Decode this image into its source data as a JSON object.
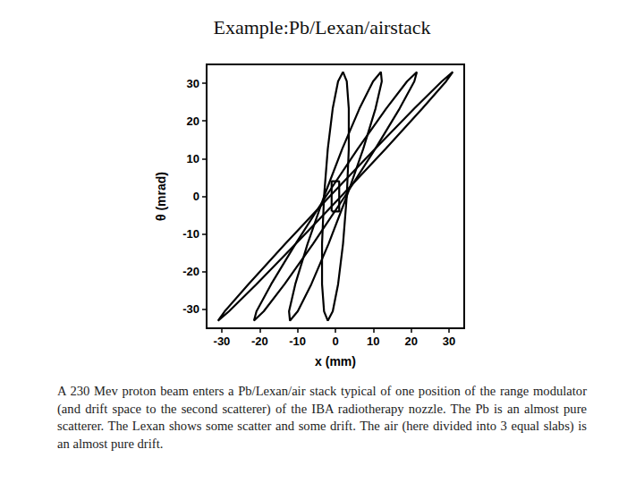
{
  "chart_data": {
    "type": "line",
    "title": "Example:Pb/Lexan/airstack",
    "x_label": "x (mm)",
    "y_label": "θ (mrad)",
    "caption": "A 230 Mev proton beam enters a Pb/Lexan/air stack typical of one position of the range modulator (and drift space to the second scatterer) of the IBA radiotherapy nozzle. The Pb is an almost pure scatterer. The Lexan shows some scatter and some drift. The air (here divided into 3 equal slabs) is an almost pure drift.",
    "xlim": [
      -34,
      34
    ],
    "xticks": [
      -30,
      -20,
      -10,
      0,
      10,
      20,
      30
    ],
    "ylim": [
      -35,
      35
    ],
    "yticks": [
      -30,
      -20,
      -10,
      0,
      10,
      20,
      30
    ],
    "grid": false,
    "color": "#000000",
    "marker": "none",
    "line_style": "solid",
    "series": [
      {
        "values": [
          [
            -1,
            -4
          ],
          [
            1,
            -4
          ],
          [
            1,
            4
          ],
          [
            -1,
            4
          ],
          [
            -1,
            -4
          ]
        ]
      },
      {
        "values": [
          [
            3,
            0
          ],
          [
            3.53,
            12.6
          ],
          [
            3.53,
            23.3
          ],
          [
            3.0,
            30.5
          ],
          [
            2,
            33
          ],
          [
            0.7,
            30.5
          ],
          [
            -0.71,
            23.3
          ],
          [
            -2.01,
            12.6
          ],
          [
            -3,
            0
          ],
          [
            -3.53,
            -12.6
          ],
          [
            -3.53,
            -23.3
          ],
          [
            -3.0,
            -30.5
          ],
          [
            -2,
            -33
          ],
          [
            -0.7,
            -30.5
          ],
          [
            0.71,
            -23.3
          ],
          [
            2.01,
            -12.6
          ],
          [
            3,
            0
          ]
        ]
      },
      {
        "values": [
          [
            3,
            0
          ],
          [
            7.35,
            12.6
          ],
          [
            10.59,
            23.3
          ],
          [
            12.24,
            30.5
          ],
          [
            12,
            33
          ],
          [
            9.94,
            30.5
          ],
          [
            6.35,
            23.3
          ],
          [
            1.81,
            12.6
          ],
          [
            -3,
            0
          ],
          [
            -7.35,
            -12.6
          ],
          [
            -10.59,
            -23.3
          ],
          [
            -12.24,
            -30.5
          ],
          [
            -12,
            -33
          ],
          [
            -9.94,
            -30.5
          ],
          [
            -6.35,
            -23.3
          ],
          [
            -1.81,
            -12.6
          ],
          [
            3,
            0
          ]
        ]
      },
      {
        "values": [
          [
            2.5,
            0
          ],
          [
            10.52,
            12.6
          ],
          [
            16.95,
            23.3
          ],
          [
            20.83,
            30.5
          ],
          [
            21.5,
            33
          ],
          [
            18.91,
            30.5
          ],
          [
            13.41,
            23.3
          ],
          [
            5.9,
            12.6
          ],
          [
            -2.5,
            0
          ],
          [
            -10.52,
            -12.6
          ],
          [
            -16.95,
            -23.3
          ],
          [
            -20.83,
            -30.5
          ],
          [
            -21.5,
            -33
          ],
          [
            -18.91,
            -30.5
          ],
          [
            -13.41,
            -23.3
          ],
          [
            -5.9,
            -12.6
          ],
          [
            2.5,
            0
          ]
        ]
      },
      {
        "values": [
          [
            1.5,
            0
          ],
          [
            13.23,
            12.6
          ],
          [
            22.95,
            23.3
          ],
          [
            29.22,
            30.5
          ],
          [
            31,
            33
          ],
          [
            28.08,
            30.5
          ],
          [
            20.83,
            23.3
          ],
          [
            10.45,
            12.6
          ],
          [
            -1.5,
            0
          ],
          [
            -13.23,
            -12.6
          ],
          [
            -22.95,
            -23.3
          ],
          [
            -29.22,
            -30.5
          ],
          [
            -31,
            -33
          ],
          [
            -28.08,
            -30.5
          ],
          [
            -20.83,
            -23.3
          ],
          [
            -10.45,
            -12.6
          ],
          [
            1.5,
            0
          ]
        ]
      }
    ]
  }
}
